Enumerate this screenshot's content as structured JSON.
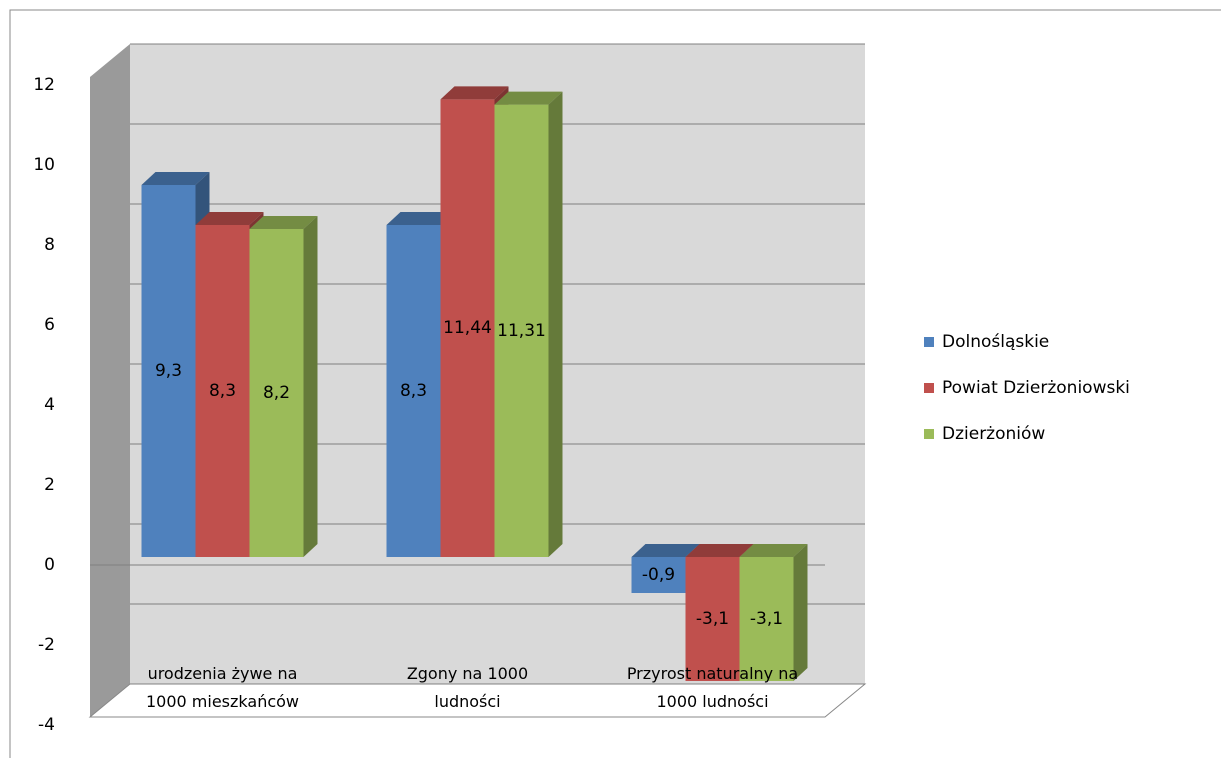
{
  "chart_data": {
    "type": "bar3d",
    "categories": [
      "urodzenia żywe na 1000 mieszkańców",
      "Zgony na 1000 ludności",
      "Przyrost naturalny na 1000 ludności"
    ],
    "series": [
      {
        "name": "Dolnośląskie",
        "color": "#4f81bd",
        "values": [
          9.3,
          8.3,
          -0.9
        ],
        "value_labels": [
          "9,3",
          "8,3",
          "-0,9"
        ]
      },
      {
        "name": "Powiat Dzierżoniowski",
        "color": "#c0504d",
        "values": [
          8.3,
          11.44,
          -3.1
        ],
        "value_labels": [
          "8,3",
          "11,44",
          "-3,1"
        ]
      },
      {
        "name": "Dzierżoniów",
        "color": "#9bbb59",
        "values": [
          8.2,
          11.31,
          -3.1
        ],
        "value_labels": [
          "8,2",
          "11,31",
          "-3,1"
        ]
      }
    ],
    "ylim": [
      -4,
      12
    ],
    "yticks": [
      -4,
      -2,
      0,
      2,
      4,
      6,
      8,
      10,
      12
    ],
    "grid": true,
    "legend": "right"
  }
}
